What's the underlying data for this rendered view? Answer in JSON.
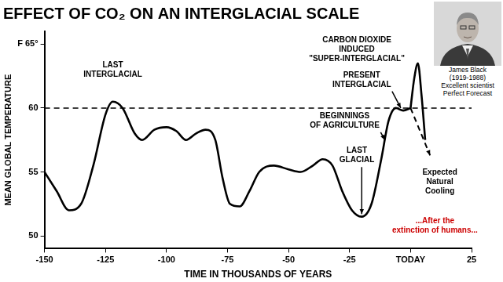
{
  "chart_data": {
    "type": "line",
    "title": "EFFECT OF CO₂ ON AN INTERGLACIAL SCALE",
    "x_label": "TIME IN THOUSANDS OF YEARS",
    "y_label": "MEAN GLOBAL TEMPERATURE",
    "xlim": [
      -150,
      25
    ],
    "xticks": [
      -150,
      -125,
      -100,
      -75,
      -50,
      -25,
      {
        "value": 0,
        "label": "TODAY"
      },
      25
    ],
    "ylim": [
      49,
      66
    ],
    "yticks": [
      50,
      55,
      60,
      {
        "value": 65,
        "label": "F 65°"
      }
    ],
    "grid": false,
    "series": [
      {
        "color": "#000000",
        "line_style": "solid",
        "x": [
          -150,
          -145,
          -140,
          -135,
          -130,
          -125,
          -122,
          -118,
          -113,
          -110,
          -105,
          -100,
          -96,
          -92,
          -88,
          -84,
          -80,
          -77,
          -74,
          -70,
          -66,
          -62,
          -56,
          -50,
          -45,
          -40,
          -36,
          -32,
          -28,
          -24,
          -20,
          -16,
          -12,
          -9,
          -6,
          -3,
          0
        ],
        "values": [
          55,
          53.5,
          52,
          52.5,
          55.5,
          59.5,
          60.5,
          60,
          58,
          57.5,
          58.3,
          58.5,
          58.2,
          57.5,
          58,
          58.3,
          57.5,
          54.5,
          52.5,
          52.3,
          53.5,
          55,
          55.5,
          55.2,
          55,
          55.5,
          56,
          55.5,
          53.5,
          52,
          51.5,
          52.5,
          56,
          59,
          60,
          59.8,
          60
        ]
      },
      {
        "color": "#000000",
        "line_style": "solid",
        "x": [
          0,
          1.5,
          3,
          4.5,
          6
        ],
        "values": [
          60,
          62.3,
          63.5,
          61,
          57.5
        ]
      },
      {
        "color": "#000000",
        "line_style": "dashed",
        "marker": "arrow",
        "x": [
          0,
          8
        ],
        "values": [
          60,
          56.3
        ]
      }
    ],
    "hline": {
      "value": 60,
      "line_style": "dashed",
      "color": "#000000"
    },
    "annotations": [
      {
        "lines": [
          "LAST",
          "INTERGLACIAL"
        ],
        "x": -122,
        "y": 63,
        "color": "#000000"
      },
      {
        "lines": [
          "CARBON DIOXIDE",
          "INDUCED",
          "\"SUPER-INTERGLACIAL\""
        ],
        "x": -22,
        "y": 64.6,
        "color": "#000000"
      },
      {
        "lines": [
          "PRESENT",
          "INTERGLACIAL"
        ],
        "x": -20,
        "y": 62.2,
        "color": "#000000",
        "arrow_to": {
          "x": -4,
          "y": 60
        }
      },
      {
        "lines": [
          "BEGINNINGS",
          "OF AGRICULTURE"
        ],
        "x": -27,
        "y": 59,
        "color": "#000000",
        "arrow_to": {
          "x": -10.5,
          "y": 57.5
        }
      },
      {
        "lines": [
          "LAST",
          "GLACIAL"
        ],
        "x": -22,
        "y": 56.3,
        "color": "#000000",
        "arrow_to": {
          "x": -20,
          "y": 51.7
        }
      },
      {
        "lines": [
          "Expected",
          "Natural",
          "Cooling"
        ],
        "x": 12,
        "y": 54.2,
        "color": "#000000"
      },
      {
        "lines": [
          "...After the",
          "extinction of humans..."
        ],
        "x": 10,
        "y": 50.8,
        "color": "#cc0000"
      }
    ],
    "inset": {
      "caption": [
        "James Black",
        "(1919-1988)",
        "Excellent scientist",
        "Perfect Forecast"
      ]
    }
  }
}
